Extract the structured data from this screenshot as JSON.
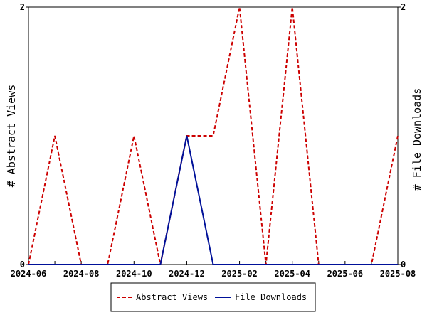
{
  "chart_data": {
    "type": "line",
    "x": [
      "2024-06",
      "2024-07",
      "2024-08",
      "2024-09",
      "2024-10",
      "2024-11",
      "2024-12",
      "2025-01",
      "2025-02",
      "2025-03",
      "2025-04",
      "2025-05",
      "2025-06",
      "2025-07",
      "2025-08"
    ],
    "x_tick_labels": [
      "2024-06",
      "2024-08",
      "2024-10",
      "2024-12",
      "2025-02",
      "2025-04",
      "2025-06",
      "2025-08"
    ],
    "series": [
      {
        "name": "Abstract Views",
        "axis": "left",
        "color": "#cc0000",
        "dash": "dashed",
        "values": [
          0,
          1,
          0,
          0,
          1,
          0,
          1,
          1,
          2,
          0,
          2,
          0,
          0,
          0,
          1
        ]
      },
      {
        "name": "File Downloads",
        "axis": "right",
        "color": "#001199",
        "dash": "solid",
        "values": [
          0,
          0,
          0,
          0,
          0,
          0,
          1,
          0,
          0,
          0,
          0,
          0,
          0,
          0,
          0
        ]
      }
    ],
    "ylabel_left": "# Abstract Views",
    "ylabel_right": "# File Downloads",
    "ylim_left": [
      0,
      2
    ],
    "ylim_right": [
      0,
      2
    ],
    "y_ticks_left": [
      "0",
      "2"
    ],
    "y_ticks_right": [
      "0",
      "2"
    ],
    "grid": false,
    "legend_position": "bottom"
  }
}
